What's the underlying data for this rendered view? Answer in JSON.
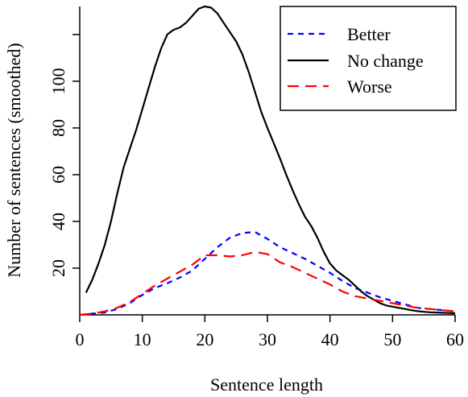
{
  "chart_data": {
    "type": "line",
    "xlabel": "Sentence length",
    "ylabel": "Number of sentences (smoothed)",
    "xlim": [
      0,
      60
    ],
    "ylim": [
      0,
      132
    ],
    "x_ticks": [
      "0",
      "10",
      "20",
      "30",
      "40",
      "50",
      "60"
    ],
    "y_ticks": [
      "20",
      "40",
      "60",
      "80",
      "100"
    ],
    "legend_position": "top-right",
    "grid": false,
    "series": [
      {
        "name": "Better",
        "color": "#0000ff",
        "dash": "dotted-dash",
        "x": [
          0,
          2,
          4,
          6,
          8,
          10,
          12,
          14,
          16,
          18,
          20,
          22,
          24,
          26,
          28,
          30,
          32,
          34,
          36,
          38,
          40,
          42,
          44,
          46,
          48,
          50,
          52,
          54,
          56,
          58,
          60
        ],
        "y": [
          0,
          0.5,
          1,
          2.5,
          5,
          8.5,
          11.5,
          13.5,
          16,
          19,
          24,
          29,
          33,
          35,
          35.5,
          32.5,
          29,
          26.5,
          24,
          21,
          18,
          14.5,
          11.5,
          9.5,
          7.5,
          6,
          4.5,
          3,
          2.5,
          2,
          1.5
        ]
      },
      {
        "name": "No change",
        "color": "#000000",
        "dash": "solid",
        "x": [
          1,
          2,
          3,
          4,
          5,
          6,
          7,
          8,
          9,
          10,
          11,
          12,
          13,
          14,
          15,
          16,
          17,
          18,
          19,
          20,
          21,
          22,
          23,
          24,
          25,
          26,
          27,
          28,
          29,
          30,
          31,
          32,
          33,
          34,
          35,
          36,
          37,
          38,
          39,
          40,
          41,
          42,
          43,
          44,
          45,
          46,
          47,
          48,
          49,
          50,
          51,
          52,
          53,
          54,
          55,
          56,
          57,
          58,
          59,
          60
        ],
        "y": [
          9.5,
          15,
          22,
          30,
          40,
          52,
          63,
          71,
          79,
          88,
          97,
          106,
          114,
          120,
          122,
          123,
          125,
          128,
          131,
          132,
          131.5,
          129,
          125,
          121,
          117,
          111.5,
          104,
          95.5,
          87,
          80,
          73.5,
          67,
          60,
          53.5,
          47.5,
          42,
          38,
          33,
          27,
          22,
          19,
          17,
          15,
          12.5,
          10,
          8,
          6.5,
          5,
          4,
          3.5,
          3,
          2.5,
          2,
          1.6,
          1.3,
          1.1,
          1,
          0.9,
          0.8,
          0.7
        ]
      },
      {
        "name": "Worse",
        "color": "#ff0000",
        "dash": "dashed",
        "x": [
          0,
          2,
          4,
          6,
          8,
          10,
          12,
          14,
          16,
          18,
          20,
          22,
          24,
          26,
          28,
          30,
          32,
          34,
          36,
          38,
          40,
          42,
          44,
          46,
          48,
          50,
          52,
          54,
          56,
          58,
          60
        ],
        "y": [
          0,
          0.5,
          1.5,
          3,
          5.5,
          9,
          12.5,
          15.5,
          18.5,
          21.5,
          25.5,
          25.5,
          25,
          25.5,
          27,
          26,
          22.5,
          20.5,
          18,
          15.5,
          13,
          10,
          8,
          7,
          6,
          5,
          4,
          3,
          2.5,
          2,
          1.5
        ]
      }
    ]
  }
}
